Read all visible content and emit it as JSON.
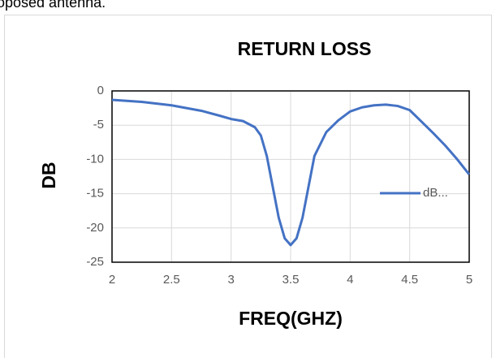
{
  "caption": "oposed antenna.",
  "chart_data": {
    "type": "line",
    "title": "RETURN LOSS",
    "x_label": "FREQ(GHZ)",
    "y_label": "DB",
    "x": [
      2.0,
      2.25,
      2.5,
      2.75,
      2.9,
      3.0,
      3.1,
      3.2,
      3.25,
      3.3,
      3.35,
      3.4,
      3.45,
      3.5,
      3.55,
      3.6,
      3.65,
      3.7,
      3.8,
      3.9,
      4.0,
      4.1,
      4.2,
      4.3,
      4.4,
      4.5,
      4.6,
      4.7,
      4.8,
      4.9,
      5.0
    ],
    "series": [
      {
        "name": "dB...",
        "color": "#4472c4",
        "values": [
          -1.3,
          -1.6,
          -2.1,
          -2.9,
          -3.6,
          -4.1,
          -4.4,
          -5.3,
          -6.5,
          -9.5,
          -14,
          -18.5,
          -21.5,
          -22.5,
          -21.5,
          -18.5,
          -14,
          -9.5,
          -6,
          -4.3,
          -3.0,
          -2.4,
          -2.1,
          -2.0,
          -2.2,
          -2.8,
          -4.5,
          -6.2,
          -8,
          -10,
          -12.2
        ]
      }
    ],
    "xlim": [
      2,
      5
    ],
    "xticks": [
      2,
      2.5,
      3,
      3.5,
      4,
      4.5,
      5
    ],
    "ylim": [
      -25,
      0
    ],
    "yticks": [
      0,
      -5,
      -10,
      -15,
      -20,
      -25
    ],
    "grid": true,
    "legend": "right"
  }
}
